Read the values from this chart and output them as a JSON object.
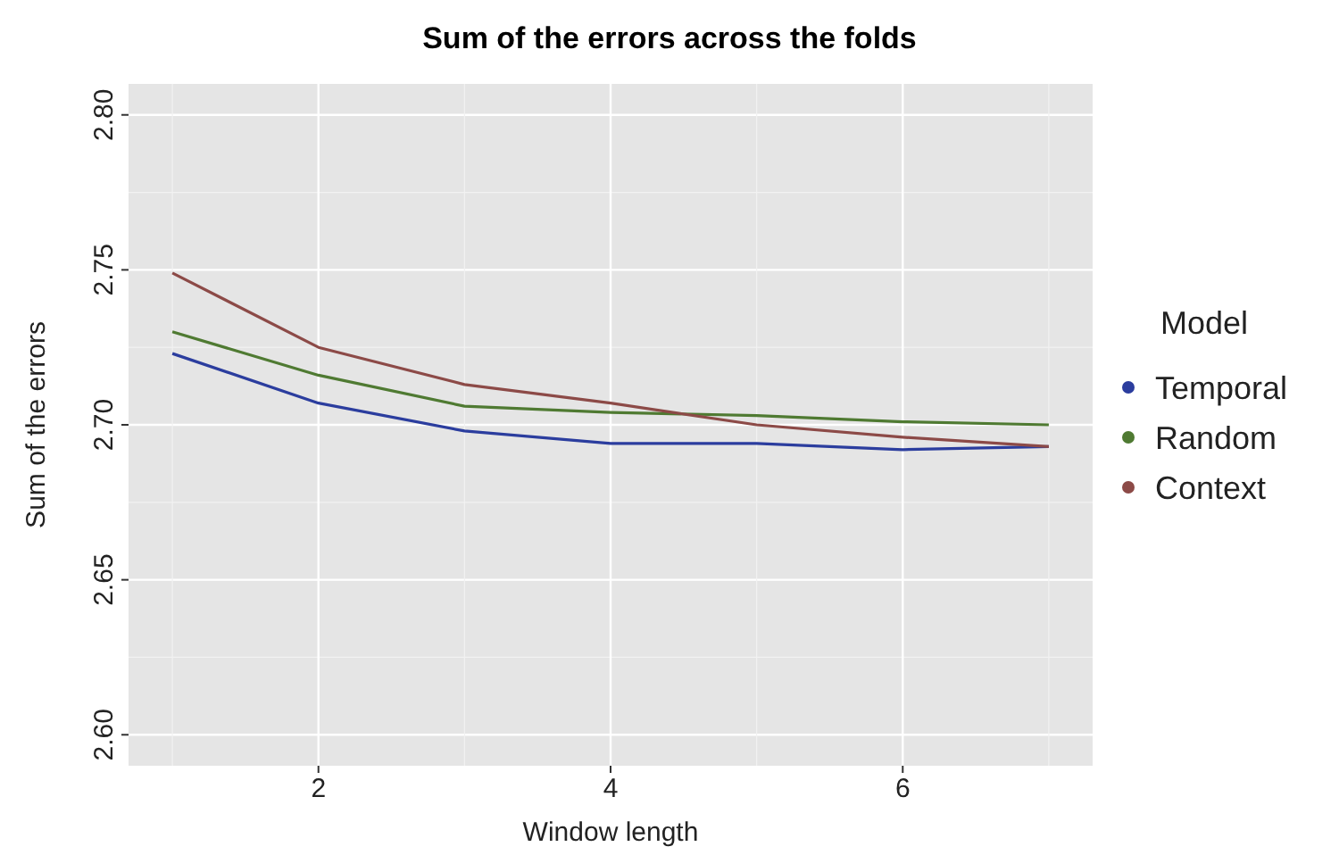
{
  "chart_data": {
    "type": "line",
    "title": "Sum of the errors across the folds",
    "xlabel": "Window length",
    "ylabel": "Sum of the errors",
    "legend_title": "Model",
    "x": [
      1,
      2,
      3,
      4,
      5,
      6,
      7
    ],
    "series": [
      {
        "name": "Temporal",
        "color": "#2b3d9e",
        "values": [
          2.723,
          2.707,
          2.698,
          2.694,
          2.694,
          2.692,
          2.693
        ]
      },
      {
        "name": "Random",
        "color": "#4f7a32",
        "values": [
          2.73,
          2.716,
          2.706,
          2.704,
          2.703,
          2.701,
          2.7
        ]
      },
      {
        "name": "Context",
        "color": "#8c4a47",
        "values": [
          2.749,
          2.725,
          2.713,
          2.707,
          2.7,
          2.696,
          2.693
        ]
      }
    ],
    "xlim": [
      0.7,
      7.3
    ],
    "xticks": [
      2,
      4,
      6
    ],
    "ylim": [
      2.59,
      2.81
    ],
    "yticks": [
      {
        "value": 2.6,
        "label": "2.60"
      },
      {
        "value": 2.65,
        "label": "2.65"
      },
      {
        "value": 2.7,
        "label": "2.70"
      },
      {
        "value": 2.75,
        "label": "2.75"
      },
      {
        "value": 2.8,
        "label": "2.80"
      }
    ],
    "grid": true,
    "legend": "right",
    "marker": "none",
    "line_style": "solid"
  }
}
